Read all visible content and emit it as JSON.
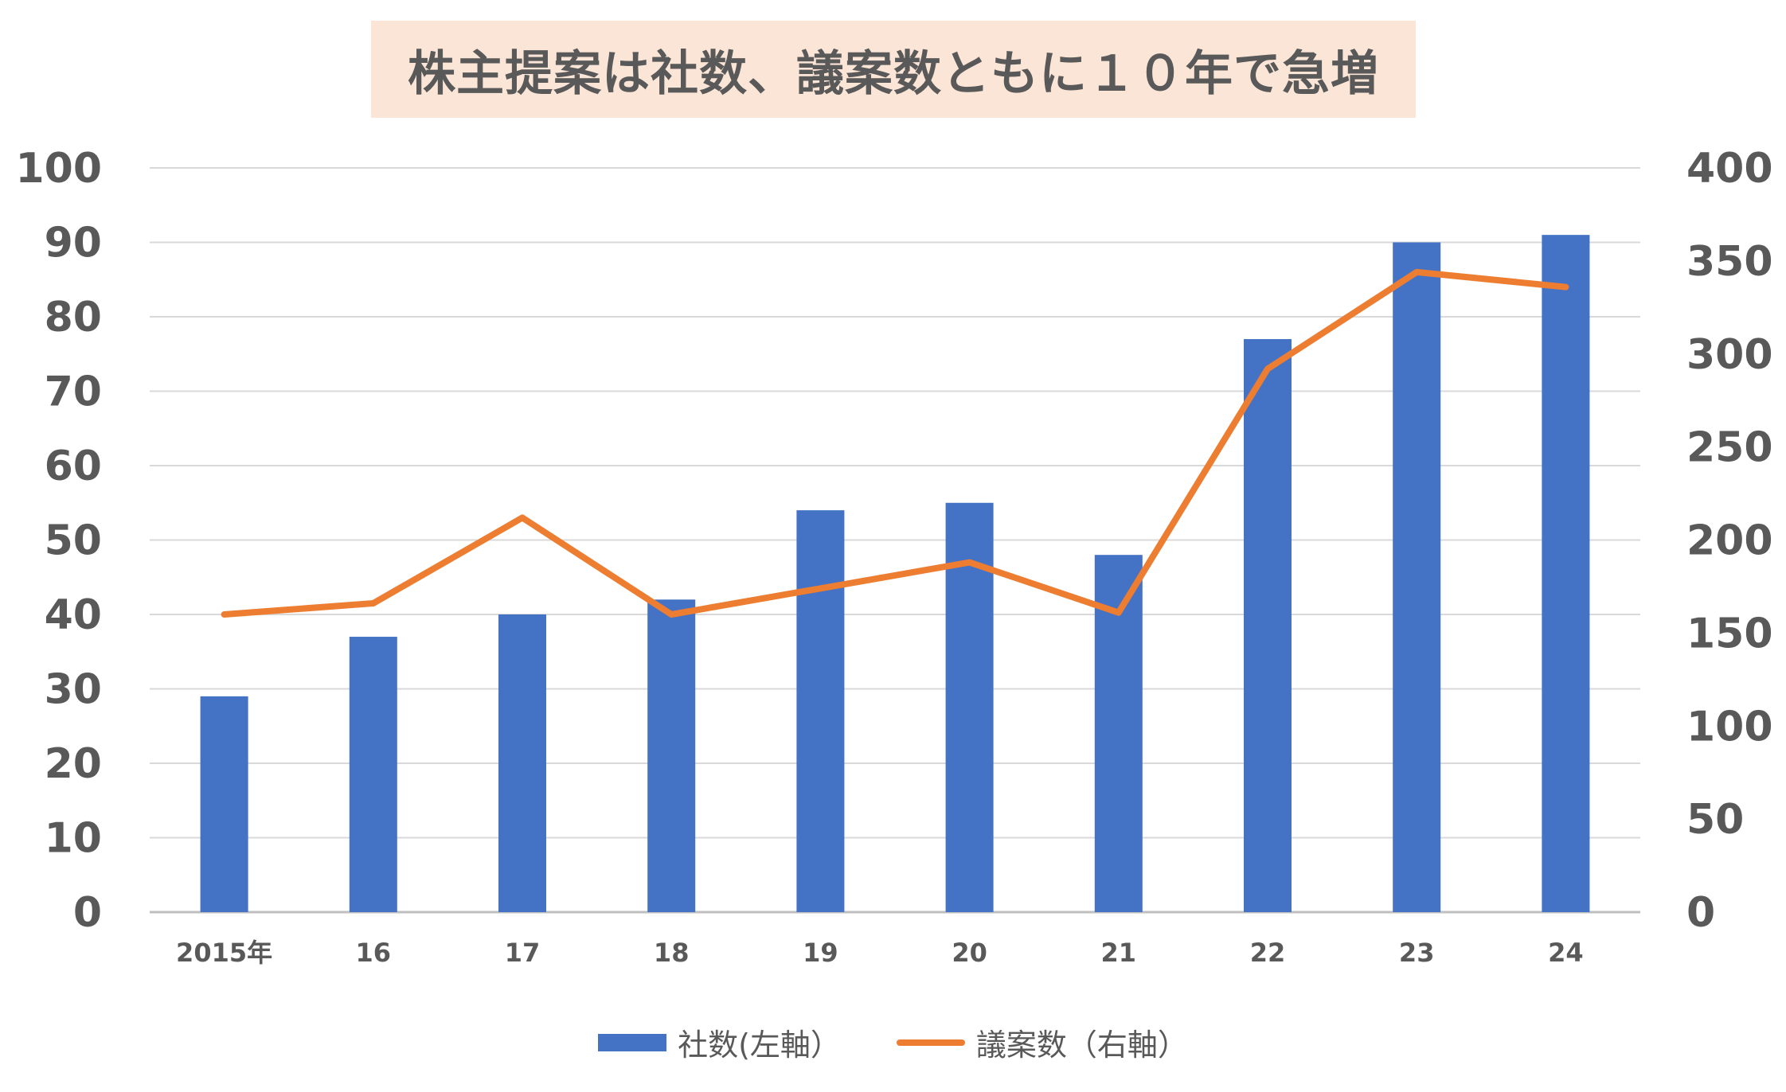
{
  "chart_data": {
    "type": "bar",
    "title": "株主提案は社数、議案数ともに１０年で急増",
    "categories": [
      "2015年",
      "16",
      "17",
      "18",
      "19",
      "20",
      "21",
      "22",
      "23",
      "24"
    ],
    "series": [
      {
        "name": "社数(左軸）",
        "type": "bar",
        "axis": "left",
        "color": "#4472c4",
        "values": [
          29,
          37,
          40,
          42,
          54,
          55,
          48,
          77,
          90,
          91
        ]
      },
      {
        "name": "議案数（右軸）",
        "type": "line",
        "axis": "right",
        "color": "#ed7d31",
        "values": [
          160,
          166,
          212,
          160,
          174,
          188,
          161,
          292,
          344,
          336
        ]
      }
    ],
    "y_left": {
      "min": 0,
      "max": 100,
      "ticks": [
        "0",
        "10",
        "20",
        "30",
        "40",
        "50",
        "60",
        "70",
        "80",
        "90",
        "100"
      ]
    },
    "y_right": {
      "min": 0,
      "max": 400,
      "ticks": [
        "0",
        "50",
        "100",
        "150",
        "200",
        "250",
        "300",
        "350",
        "400"
      ]
    },
    "grid": true,
    "legend_position": "bottom"
  }
}
